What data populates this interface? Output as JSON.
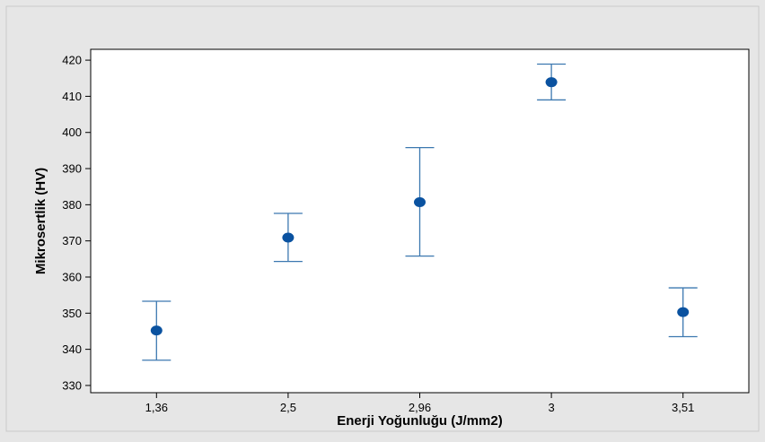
{
  "chart_data": {
    "type": "scatter",
    "subtype": "interval-plot",
    "title": "",
    "xlabel": "Enerji Yoğunluğu (J/mm2)",
    "ylabel": "Mikrosertlik (HV)",
    "categories": [
      "1,36",
      "2,5",
      "2,96",
      "3",
      "3,51"
    ],
    "series": [
      {
        "name": "",
        "means": [
          345.2,
          370.9,
          380.7,
          413.9,
          350.3
        ],
        "lower": [
          337.0,
          364.3,
          365.8,
          409.0,
          343.5
        ],
        "upper": [
          353.3,
          377.6,
          395.8,
          418.9,
          357.0
        ]
      }
    ],
    "ylim": [
      328,
      423
    ],
    "yticks": [
      330,
      340,
      350,
      360,
      370,
      380,
      390,
      400,
      410,
      420
    ],
    "grid": false,
    "legend": "none",
    "colors": {
      "background": "#e6e6e6",
      "plot_background": "#ffffff",
      "marker": "#0a52a0",
      "error_bar": "#3c78b0",
      "axis": "#000000"
    }
  }
}
